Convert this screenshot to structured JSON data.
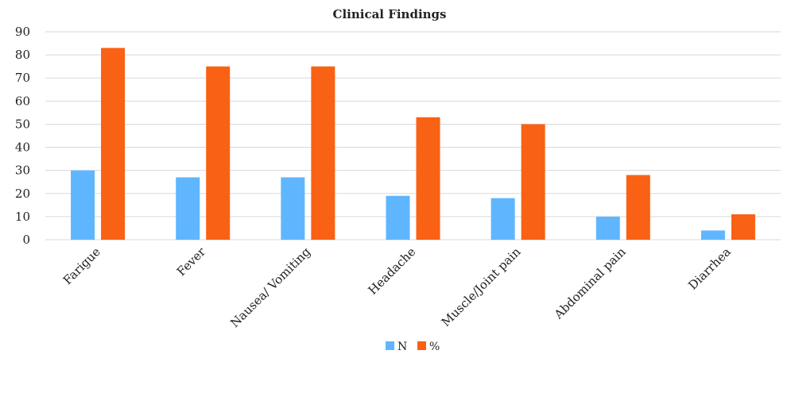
{
  "chart_data": {
    "type": "bar",
    "title": "Clinical Findings",
    "xlabel": "",
    "ylabel": "",
    "ylim": [
      0,
      90
    ],
    "yticks": [
      0,
      10,
      20,
      30,
      40,
      50,
      60,
      70,
      80,
      90
    ],
    "grid": true,
    "legend_position": "bottom",
    "categories": [
      "Farigue",
      "Fever",
      "Nausea/ Vomiting",
      "Headache",
      "Muscle/Joint pain",
      "Abdominal pain",
      "Diarrhea"
    ],
    "series": [
      {
        "name": "N",
        "color": "#5fb6ff",
        "values": [
          30,
          27,
          27,
          19,
          18,
          10,
          4
        ]
      },
      {
        "name": "%",
        "color": "#f96114",
        "values": [
          83,
          75,
          75,
          53,
          50,
          28,
          11
        ]
      }
    ]
  }
}
